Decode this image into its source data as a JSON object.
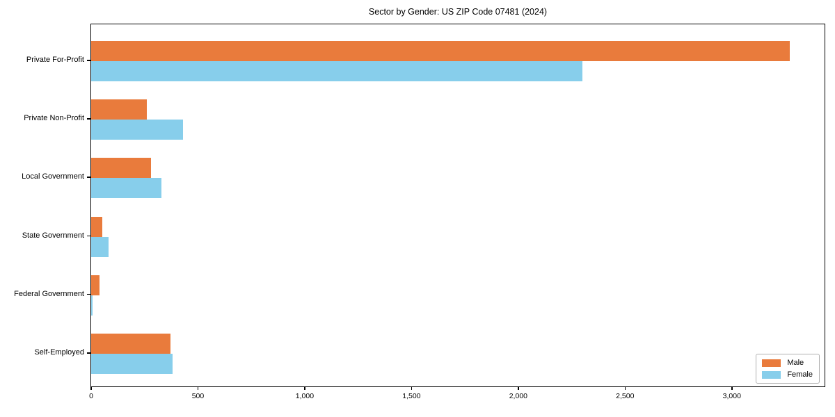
{
  "chart_data": {
    "type": "bar",
    "orientation": "horizontal",
    "title": "Sector by Gender: US ZIP Code 07481 (2024)",
    "categories": [
      "Private For-Profit",
      "Private Non-Profit",
      "Local Government",
      "State Government",
      "Federal Government",
      "Self-Employed"
    ],
    "series": [
      {
        "name": "Male",
        "color": "#E97B3C",
        "values": [
          3270,
          260,
          280,
          52,
          40,
          370
        ]
      },
      {
        "name": "Female",
        "color": "#87CEEB",
        "values": [
          2300,
          430,
          330,
          80,
          5,
          380
        ]
      }
    ],
    "xlabel": "",
    "ylabel": "",
    "xlim": [
      0,
      3434
    ],
    "xticks": [
      0,
      500,
      1000,
      1500,
      2000,
      2500,
      3000
    ],
    "xtick_labels": [
      "0",
      "500",
      "1,000",
      "1,500",
      "2,000",
      "2,500",
      "3,000"
    ],
    "grid": false,
    "legend": {
      "position": "lower-right",
      "entries": [
        {
          "label": "Male",
          "color": "#E97B3C"
        },
        {
          "label": "Female",
          "color": "#87CEEB"
        }
      ]
    }
  }
}
